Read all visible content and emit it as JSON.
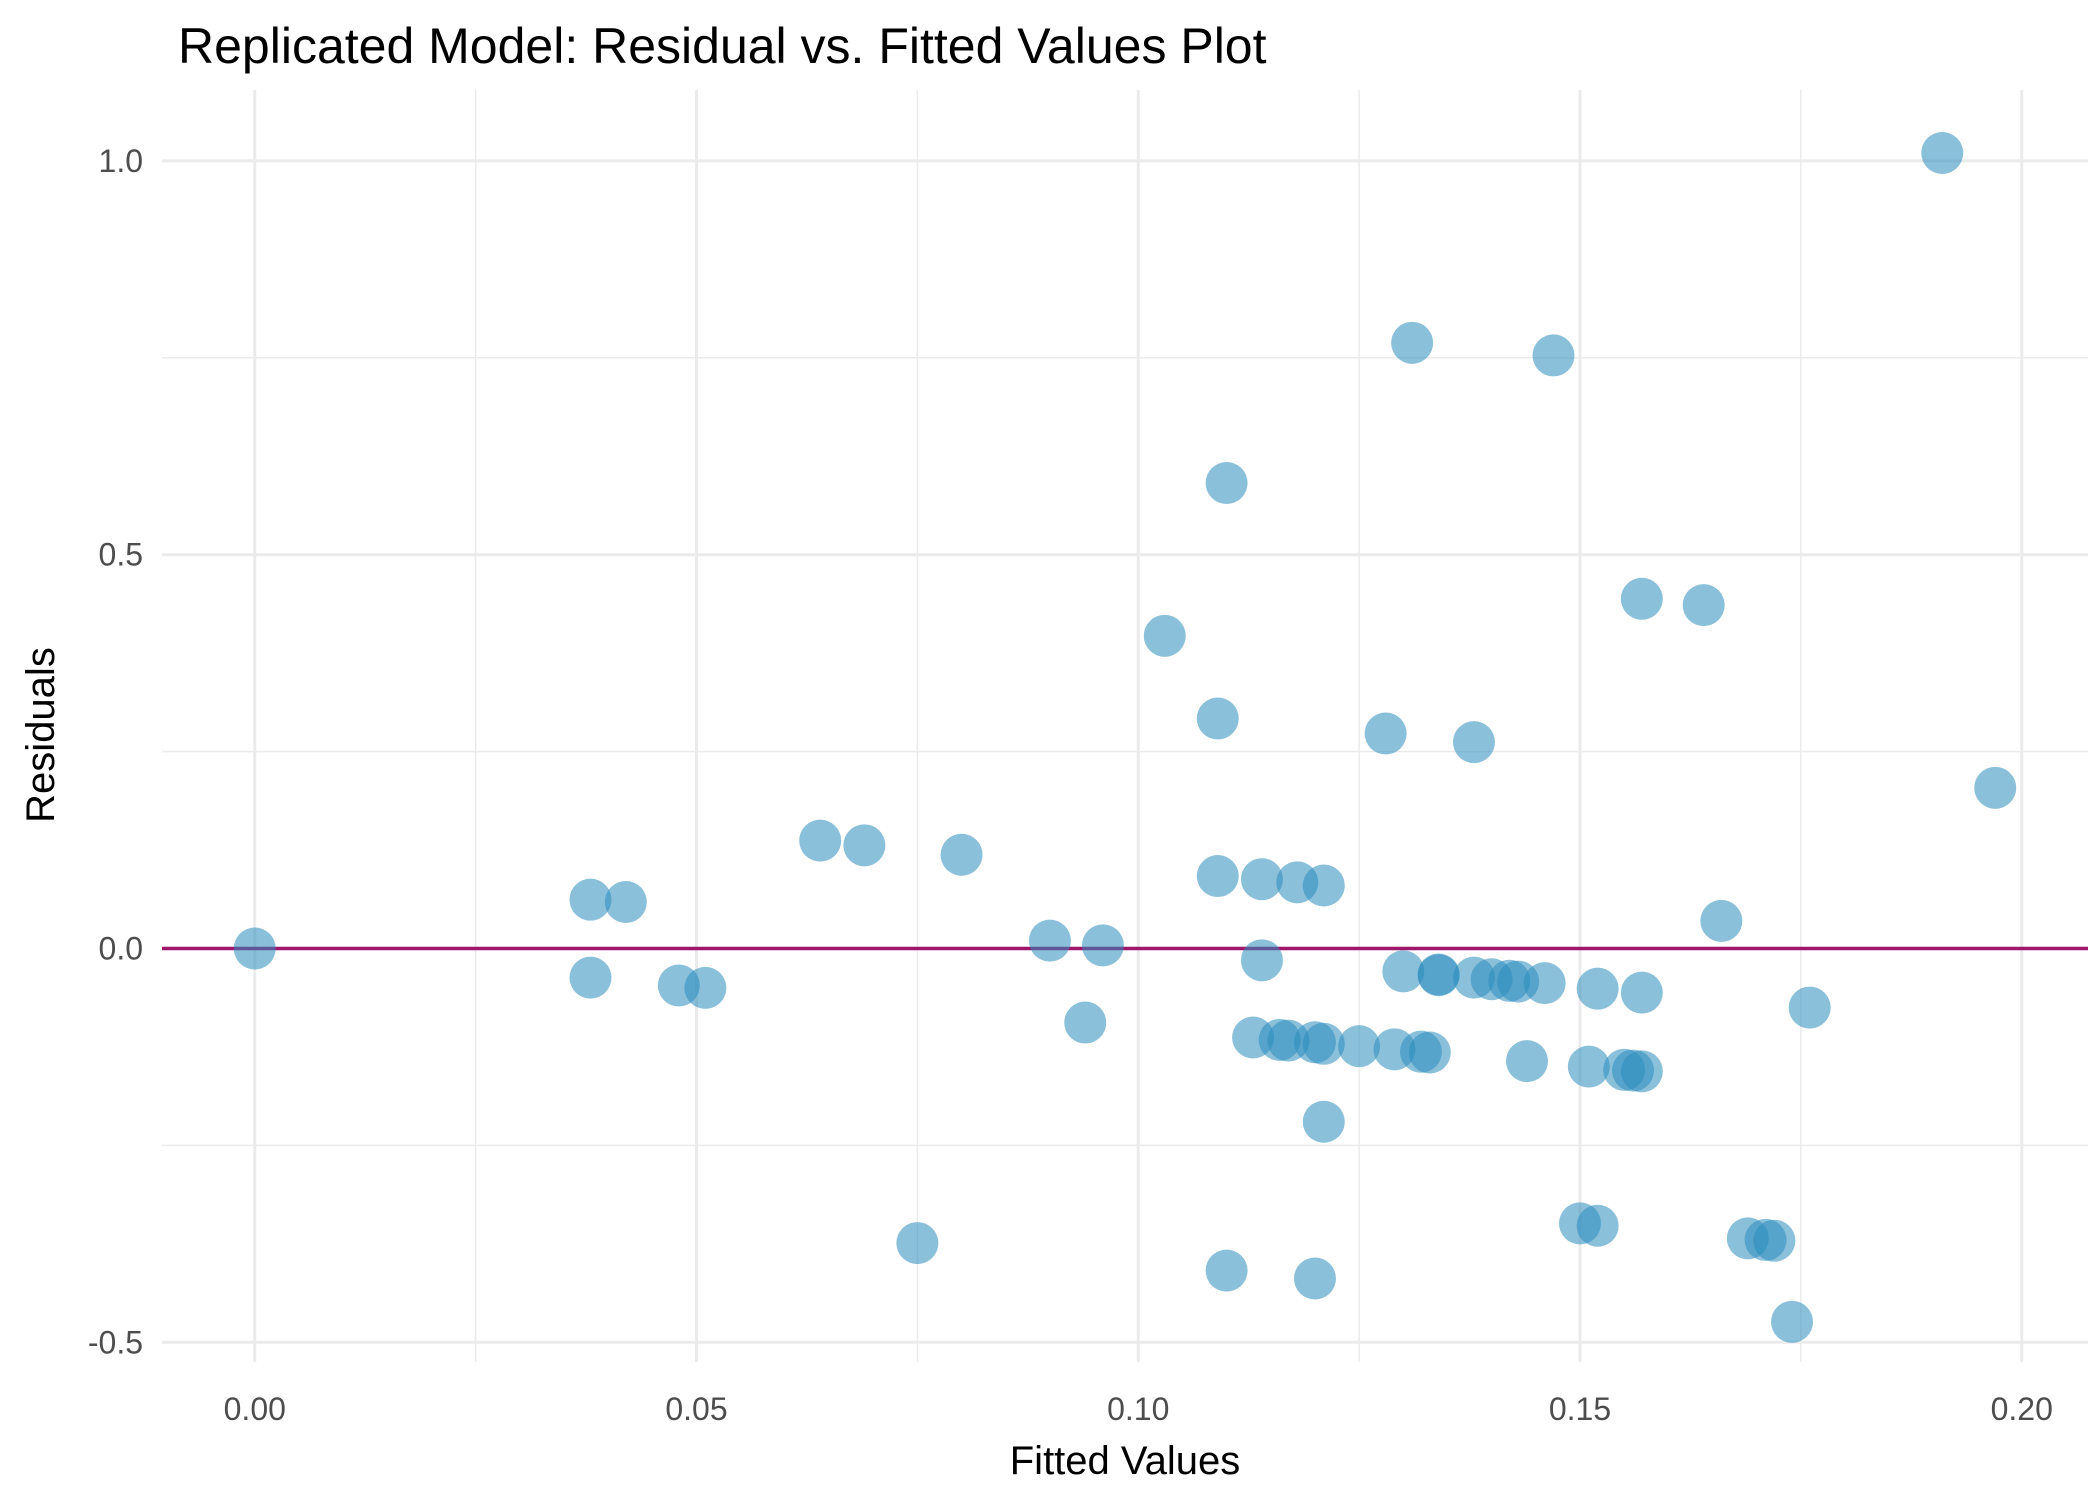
{
  "chart_data": {
    "type": "scatter",
    "title": "Replicated Model: Residual vs. Fitted Values Plot",
    "xlabel": "Fitted Values",
    "ylabel": "Residuals",
    "xlim": [
      -0.0105,
      0.2075
    ],
    "ylim": [
      -0.525,
      1.09
    ],
    "x_ticks": [
      0.0,
      0.05,
      0.1,
      0.15,
      0.2
    ],
    "x_tick_labels": [
      "0.00",
      "0.05",
      "0.10",
      "0.15",
      "0.20"
    ],
    "y_ticks": [
      -0.5,
      0.0,
      0.5,
      1.0
    ],
    "y_tick_labels": [
      "-0.5",
      "0.0",
      "0.5",
      "1.0"
    ],
    "grid": true,
    "reference_line": {
      "y": 0.0,
      "color": "#a0166b"
    },
    "point_color": "#2b8cbe",
    "points": [
      {
        "x": 0.0,
        "y": 0.0
      },
      {
        "x": 0.038,
        "y": -0.037
      },
      {
        "x": 0.038,
        "y": 0.062
      },
      {
        "x": 0.042,
        "y": 0.059
      },
      {
        "x": 0.048,
        "y": -0.047
      },
      {
        "x": 0.051,
        "y": -0.05
      },
      {
        "x": 0.064,
        "y": 0.137
      },
      {
        "x": 0.069,
        "y": 0.131
      },
      {
        "x": 0.075,
        "y": -0.374
      },
      {
        "x": 0.08,
        "y": 0.119
      },
      {
        "x": 0.09,
        "y": 0.01
      },
      {
        "x": 0.094,
        "y": -0.094
      },
      {
        "x": 0.096,
        "y": 0.004
      },
      {
        "x": 0.103,
        "y": 0.397
      },
      {
        "x": 0.109,
        "y": 0.292
      },
      {
        "x": 0.109,
        "y": 0.092
      },
      {
        "x": 0.11,
        "y": 0.591
      },
      {
        "x": 0.11,
        "y": -0.409
      },
      {
        "x": 0.113,
        "y": -0.113
      },
      {
        "x": 0.114,
        "y": 0.088
      },
      {
        "x": 0.114,
        "y": -0.015
      },
      {
        "x": 0.116,
        "y": -0.116
      },
      {
        "x": 0.117,
        "y": -0.117
      },
      {
        "x": 0.118,
        "y": 0.084
      },
      {
        "x": 0.12,
        "y": -0.419
      },
      {
        "x": 0.12,
        "y": -0.119
      },
      {
        "x": 0.121,
        "y": 0.08
      },
      {
        "x": 0.121,
        "y": -0.22
      },
      {
        "x": 0.121,
        "y": -0.121
      },
      {
        "x": 0.125,
        "y": -0.124
      },
      {
        "x": 0.128,
        "y": 0.273
      },
      {
        "x": 0.129,
        "y": -0.128
      },
      {
        "x": 0.13,
        "y": -0.029
      },
      {
        "x": 0.131,
        "y": 0.769
      },
      {
        "x": 0.132,
        "y": -0.131
      },
      {
        "x": 0.133,
        "y": -0.132
      },
      {
        "x": 0.134,
        "y": -0.033
      },
      {
        "x": 0.134,
        "y": -0.034
      },
      {
        "x": 0.138,
        "y": 0.262
      },
      {
        "x": 0.138,
        "y": -0.037
      },
      {
        "x": 0.14,
        "y": -0.039
      },
      {
        "x": 0.142,
        "y": -0.041
      },
      {
        "x": 0.143,
        "y": -0.042
      },
      {
        "x": 0.144,
        "y": -0.143
      },
      {
        "x": 0.146,
        "y": -0.044
      },
      {
        "x": 0.147,
        "y": 0.753
      },
      {
        "x": 0.15,
        "y": -0.349
      },
      {
        "x": 0.151,
        "y": -0.15
      },
      {
        "x": 0.152,
        "y": -0.051
      },
      {
        "x": 0.152,
        "y": -0.352
      },
      {
        "x": 0.155,
        "y": -0.154
      },
      {
        "x": 0.156,
        "y": -0.155
      },
      {
        "x": 0.157,
        "y": 0.444
      },
      {
        "x": 0.157,
        "y": -0.056
      },
      {
        "x": 0.157,
        "y": -0.156
      },
      {
        "x": 0.164,
        "y": 0.436
      },
      {
        "x": 0.166,
        "y": 0.035
      },
      {
        "x": 0.169,
        "y": -0.368
      },
      {
        "x": 0.171,
        "y": -0.37
      },
      {
        "x": 0.172,
        "y": -0.371
      },
      {
        "x": 0.174,
        "y": -0.474
      },
      {
        "x": 0.176,
        "y": -0.075
      },
      {
        "x": 0.191,
        "y": 1.01
      },
      {
        "x": 0.197,
        "y": 0.204
      }
    ]
  }
}
